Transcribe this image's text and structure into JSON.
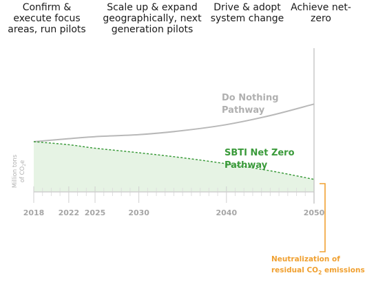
{
  "phases": [
    {
      "lines": [
        "Confirm &",
        "execute focus",
        "areas, run pilots"
      ]
    },
    {
      "lines": [
        "Scale up & expand",
        "geographically, next",
        "generation pilots"
      ]
    },
    {
      "lines": [
        "Drive & adopt",
        "system change"
      ]
    },
    {
      "lines": [
        "Achieve net-",
        "zero"
      ]
    }
  ],
  "chart_data": {
    "type": "area",
    "ylabel": "Million tons of CO2e",
    "x_ticks": [
      2018,
      2022,
      2025,
      2030,
      2040,
      2050
    ],
    "xlim": [
      2018,
      2050
    ],
    "ylim": [
      0,
      3
    ],
    "y_ticks_shown": false,
    "series": [
      {
        "name": "Do Nothing Pathway",
        "label_lines": [
          "Do Nothing",
          "Pathway"
        ],
        "style": "solid",
        "color": "#b8b8b8",
        "x": [
          2018,
          2022,
          2025,
          2030,
          2035,
          2040,
          2045,
          2050
        ],
        "values": [
          1.0,
          1.06,
          1.1,
          1.14,
          1.22,
          1.34,
          1.52,
          1.75
        ]
      },
      {
        "name": "SBTI Net Zero Pathway",
        "label_lines": [
          "SBTI Net Zero",
          "Pathway"
        ],
        "style": "dashed",
        "color": "#3a9a3a",
        "fill": "#e6f3e4",
        "x": [
          2018,
          2022,
          2025,
          2030,
          2035,
          2040,
          2045,
          2050
        ],
        "values": [
          1.0,
          0.94,
          0.87,
          0.78,
          0.68,
          0.56,
          0.42,
          0.25
        ]
      }
    ],
    "annotation": {
      "line1": "Neutralization of",
      "line2_prefix": "residual CO",
      "line2_sub": "2",
      "line2_suffix": " emissions",
      "color": "#f0a030"
    }
  }
}
